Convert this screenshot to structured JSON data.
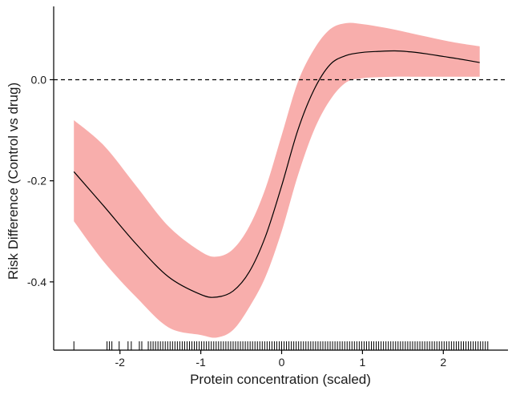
{
  "chart_data": {
    "type": "line",
    "title": "",
    "xlabel": "Protein concentration (scaled)",
    "ylabel": "Risk Difference (Control vs drug)",
    "xlim": [
      -2.82,
      2.8
    ],
    "ylim": [
      -0.535,
      0.145
    ],
    "x_ticks": [
      -2,
      -1,
      0,
      1,
      2
    ],
    "x_tick_labels": [
      "-2",
      "-1",
      "0",
      "1",
      "2"
    ],
    "y_ticks": [
      -0.4,
      -0.2,
      0.0
    ],
    "y_tick_labels": [
      "-0.4",
      "-0.2",
      "0.0"
    ],
    "grid": false,
    "legend": "none",
    "reference_line": {
      "y": 0.0,
      "style": "dashed"
    },
    "colors": {
      "band": "#f8aeac",
      "line": "#000000",
      "axis": "#000000"
    },
    "series": [
      {
        "x": [
          -2.57,
          -2.2,
          -1.8,
          -1.4,
          -1.0,
          -0.8,
          -0.6,
          -0.4,
          -0.2,
          0.0,
          0.2,
          0.4,
          0.6,
          0.8,
          1.0,
          1.2,
          1.4,
          1.6,
          1.8,
          2.0,
          2.2,
          2.45
        ],
        "y": [
          -0.182,
          -0.25,
          -0.325,
          -0.39,
          -0.425,
          -0.43,
          -0.418,
          -0.38,
          -0.31,
          -0.21,
          -0.1,
          -0.02,
          0.03,
          0.048,
          0.054,
          0.056,
          0.057,
          0.055,
          0.051,
          0.046,
          0.041,
          0.034
        ],
        "lower": [
          -0.28,
          -0.36,
          -0.43,
          -0.49,
          -0.505,
          -0.51,
          -0.495,
          -0.45,
          -0.39,
          -0.3,
          -0.19,
          -0.1,
          -0.04,
          -0.005,
          0.003,
          0.005,
          0.006,
          0.006,
          0.006,
          0.006,
          0.006,
          0.006
        ],
        "upper": [
          -0.08,
          -0.13,
          -0.21,
          -0.29,
          -0.34,
          -0.35,
          -0.335,
          -0.29,
          -0.215,
          -0.11,
          -0.005,
          0.06,
          0.1,
          0.112,
          0.11,
          0.105,
          0.099,
          0.092,
          0.085,
          0.078,
          0.072,
          0.066
        ]
      }
    ],
    "rug_x": [
      -2.57,
      -2.16,
      -2.13,
      -2.1,
      -2.01,
      -1.9,
      -1.86,
      -1.76,
      -1.73,
      -1.65,
      -1.62,
      -1.59,
      -1.56,
      -1.53,
      -1.5,
      -1.47,
      -1.44,
      -1.41,
      -1.38,
      -1.35,
      -1.32,
      -1.29,
      -1.26,
      -1.23,
      -1.2,
      -1.17,
      -1.14,
      -1.11,
      -1.08,
      -1.05,
      -1.02,
      -0.99,
      -0.96,
      -0.93,
      -0.9,
      -0.87,
      -0.84,
      -0.81,
      -0.78,
      -0.75,
      -0.72,
      -0.69,
      -0.66,
      -0.63,
      -0.6,
      -0.57,
      -0.54,
      -0.51,
      -0.48,
      -0.45,
      -0.42,
      -0.39,
      -0.36,
      -0.33,
      -0.3,
      -0.27,
      -0.24,
      -0.21,
      -0.18,
      -0.15,
      -0.12,
      -0.09,
      -0.06,
      -0.03,
      0.0,
      0.03,
      0.06,
      0.09,
      0.12,
      0.15,
      0.18,
      0.21,
      0.24,
      0.27,
      0.3,
      0.33,
      0.36,
      0.39,
      0.42,
      0.45,
      0.48,
      0.51,
      0.54,
      0.57,
      0.6,
      0.63,
      0.66,
      0.69,
      0.72,
      0.75,
      0.78,
      0.81,
      0.84,
      0.87,
      0.9,
      0.93,
      0.96,
      0.99,
      1.02,
      1.05,
      1.08,
      1.11,
      1.14,
      1.17,
      1.2,
      1.23,
      1.26,
      1.29,
      1.32,
      1.35,
      1.38,
      1.41,
      1.44,
      1.47,
      1.5,
      1.53,
      1.56,
      1.59,
      1.62,
      1.65,
      1.68,
      1.71,
      1.74,
      1.77,
      1.8,
      1.83,
      1.86,
      1.89,
      1.92,
      1.95,
      1.98,
      2.01,
      2.04,
      2.07,
      2.1,
      2.13,
      2.16,
      2.19,
      2.22,
      2.25,
      2.28,
      2.31,
      2.34,
      2.37,
      2.4,
      2.43,
      2.46,
      2.49,
      2.52,
      2.55
    ]
  }
}
